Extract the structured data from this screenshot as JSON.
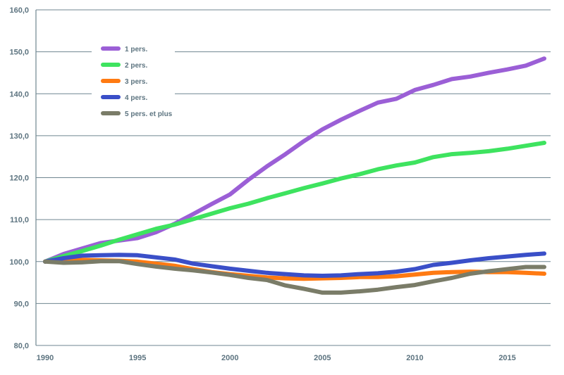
{
  "chart_data": {
    "type": "line",
    "title": "",
    "xlabel": "",
    "ylabel": "",
    "x": [
      1990,
      1991,
      1992,
      1993,
      1994,
      1995,
      1996,
      1997,
      1998,
      1999,
      2000,
      2001,
      2002,
      2003,
      2004,
      2005,
      2006,
      2007,
      2008,
      2009,
      2010,
      2011,
      2012,
      2013,
      2014,
      2015,
      2016,
      2017
    ],
    "xlim": [
      1990,
      2017
    ],
    "ylim": [
      80,
      160
    ],
    "yticks": [
      80,
      90,
      100,
      110,
      120,
      130,
      140,
      150,
      160
    ],
    "ytick_labels": [
      "80,0",
      "90,0",
      "100,0",
      "110,0",
      "120,0",
      "130,0",
      "140,0",
      "150,0",
      "160,0"
    ],
    "xticks": [
      1990,
      1995,
      2000,
      2005,
      2010,
      2015
    ],
    "xtick_labels": [
      "1990",
      "1995",
      "2000",
      "2005",
      "2010",
      "2015"
    ],
    "grid": true,
    "legend_position": "top-left",
    "series": [
      {
        "name": "1 pers.",
        "color": "#9b5fd6",
        "values": [
          100,
          101.8,
          103.1,
          104.4,
          105.0,
          105.6,
          107.0,
          109.0,
          111.3,
          113.7,
          116.0,
          119.5,
          122.7,
          125.6,
          128.7,
          131.5,
          133.8,
          135.9,
          137.9,
          138.8,
          140.9,
          142.1,
          143.5,
          144.1,
          145.0,
          145.8,
          146.7,
          148.4
        ]
      },
      {
        "name": "2 pers.",
        "color": "#3ee35f",
        "values": [
          100,
          101.3,
          102.5,
          103.8,
          105.2,
          106.5,
          107.8,
          108.8,
          110.1,
          111.4,
          112.7,
          113.8,
          115.1,
          116.3,
          117.5,
          118.6,
          119.8,
          120.8,
          122.0,
          122.9,
          123.6,
          124.9,
          125.6,
          125.9,
          126.3,
          126.9,
          127.6,
          128.3
        ]
      },
      {
        "name": "3 pers.",
        "color": "#ff7a12",
        "values": [
          100,
          100.5,
          100.4,
          100.3,
          100.2,
          100.0,
          99.5,
          99.0,
          98.2,
          97.5,
          97.0,
          96.6,
          96.2,
          96.0,
          95.9,
          96.0,
          96.1,
          96.3,
          96.3,
          96.5,
          96.9,
          97.3,
          97.5,
          97.6,
          97.5,
          97.5,
          97.3,
          97.1
        ]
      },
      {
        "name": "4 pers.",
        "color": "#3a4fc8",
        "values": [
          100,
          100.8,
          101.4,
          101.5,
          101.6,
          101.5,
          101.0,
          100.5,
          99.5,
          98.9,
          98.3,
          97.8,
          97.3,
          97.0,
          96.7,
          96.6,
          96.7,
          97.0,
          97.2,
          97.6,
          98.2,
          99.2,
          99.7,
          100.3,
          100.8,
          101.2,
          101.6,
          101.9
        ]
      },
      {
        "name": "5 pers. et plus",
        "color": "#7a7c68",
        "values": [
          100,
          99.7,
          99.8,
          100.1,
          100.1,
          99.4,
          98.8,
          98.3,
          97.9,
          97.4,
          96.8,
          96.1,
          95.6,
          94.3,
          93.5,
          92.6,
          92.6,
          92.9,
          93.3,
          93.9,
          94.4,
          95.3,
          96.1,
          97.1,
          97.7,
          98.2,
          98.7,
          98.7
        ]
      }
    ]
  }
}
